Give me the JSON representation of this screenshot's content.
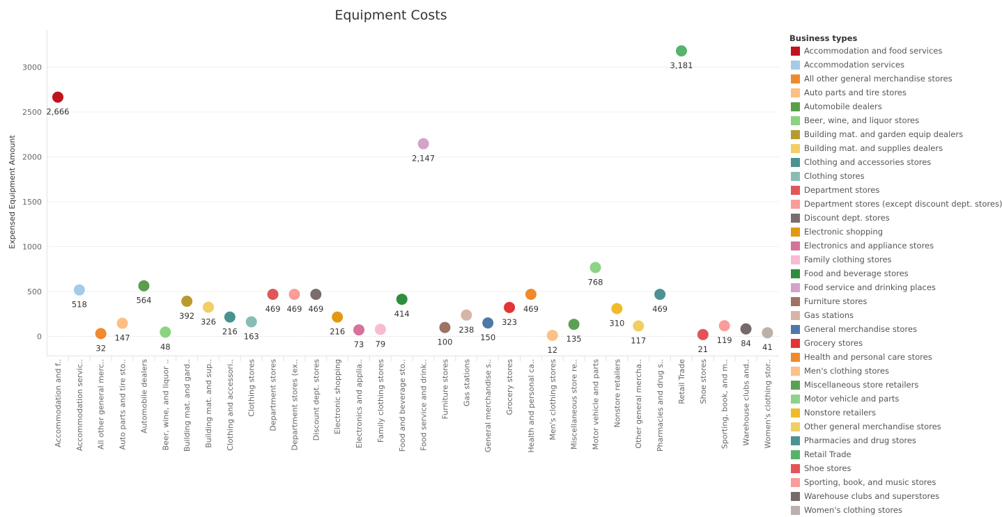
{
  "chart_data": {
    "type": "scatter",
    "title": "Equipment Costs",
    "ylabel": "Expensed Equipment Amount",
    "ylim": [
      -200,
      3400
    ],
    "yticks": [
      0,
      500,
      1000,
      1500,
      2000,
      2500,
      3000
    ],
    "legend_title": "Business types",
    "legend_position": "right",
    "grid": true,
    "points": [
      {
        "category": "Accommodation and food services",
        "tick": "Accommodation and f..",
        "value": 2666,
        "value_label": "2,666",
        "color": "#C0131E"
      },
      {
        "category": "Accommodation services",
        "tick": "Accommodation servic..",
        "value": 518,
        "value_label": "518",
        "color": "#A4CCE8"
      },
      {
        "category": "All other general merchandise stores",
        "tick": "All other general merc..",
        "value": 32,
        "value_label": "32",
        "color": "#EF8A2E"
      },
      {
        "category": "Auto parts and tire stores",
        "tick": "Auto parts and tire sto..",
        "value": 147,
        "value_label": "147",
        "color": "#FDBF82"
      },
      {
        "category": "Automobile dealers",
        "tick": "Automobile dealers",
        "value": 564,
        "value_label": "564",
        "color": "#5A9E4C"
      },
      {
        "category": "Beer, wine, and liquor stores",
        "tick": "Beer, wine, and liquor ..",
        "value": 48,
        "value_label": "48",
        "color": "#8BD37E"
      },
      {
        "category": "Building mat. and garden equip dealers",
        "tick": "Building mat. and gard..",
        "value": 392,
        "value_label": "392",
        "color": "#B89B2F"
      },
      {
        "category": "Building mat. and supplies dealers",
        "tick": "Building mat. and sup..",
        "value": 326,
        "value_label": "326",
        "color": "#F2CE67"
      },
      {
        "category": "Clothing and accessories stores",
        "tick": "Clothing and accessori..",
        "value": 216,
        "value_label": "216",
        "color": "#4A9292"
      },
      {
        "category": "Clothing stores",
        "tick": "Clothing stores",
        "value": 163,
        "value_label": "163",
        "color": "#88BDB5"
      },
      {
        "category": "Department stores",
        "tick": "Department stores",
        "value": 469,
        "value_label": "469",
        "color": "#E05759"
      },
      {
        "category": "Department stores (except discount dept. stores)",
        "tick": "Department stores (ex..",
        "value": 469,
        "value_label": "469",
        "color": "#FA9C99"
      },
      {
        "category": "Discount dept. stores",
        "tick": "Discount dept. stores",
        "value": 469,
        "value_label": "469",
        "color": "#7A6D6D"
      },
      {
        "category": "Electronic shopping",
        "tick": "Electronic shopping",
        "value": 216,
        "value_label": "216",
        "color": "#E39812"
      },
      {
        "category": "Electronics and appliance stores",
        "tick": "Electronics and applia..",
        "value": 73,
        "value_label": "73",
        "color": "#D5739A"
      },
      {
        "category": "Family clothing stores",
        "tick": "Family clothing stores",
        "value": 79,
        "value_label": "79",
        "color": "#F8BBD1"
      },
      {
        "category": "Food and beverage stores",
        "tick": "Food and beverage sto..",
        "value": 414,
        "value_label": "414",
        "color": "#2F8E3E"
      },
      {
        "category": "Food service and drinking places",
        "tick": "Food service and drink..",
        "value": 2147,
        "value_label": "2,147",
        "color": "#D3A3CA"
      },
      {
        "category": "Furniture stores",
        "tick": "Furniture stores",
        "value": 100,
        "value_label": "100",
        "color": "#9D7361"
      },
      {
        "category": "Gas stations",
        "tick": "Gas stations",
        "value": 238,
        "value_label": "238",
        "color": "#D7B5A6"
      },
      {
        "category": "General merchandise stores",
        "tick": "General merchandise s..",
        "value": 150,
        "value_label": "150",
        "color": "#4E79A7"
      },
      {
        "category": "Grocery stores",
        "tick": "Grocery stores",
        "value": 323,
        "value_label": "323",
        "color": "#E33436"
      },
      {
        "category": "Health and personal care stores",
        "tick": "Health and personal ca..",
        "value": 469,
        "value_label": "469",
        "color": "#F08A2B"
      },
      {
        "category": "Men's clothing stores",
        "tick": "Men's clothing stores",
        "value": 12,
        "value_label": "12",
        "color": "#FDC086"
      },
      {
        "category": "Miscellaneous store retailers",
        "tick": "Miscellaneous store re..",
        "value": 135,
        "value_label": "135",
        "color": "#5BA153"
      },
      {
        "category": "Motor vehicle and parts",
        "tick": "Motor vehicle and parts",
        "value": 768,
        "value_label": "768",
        "color": "#8DD387"
      },
      {
        "category": "Nonstore retailers",
        "tick": "Nonstore retailers",
        "value": 310,
        "value_label": "310",
        "color": "#F0BB28"
      },
      {
        "category": "Other general merchandise stores",
        "tick": "Other general mercha..",
        "value": 117,
        "value_label": "117",
        "color": "#F1CE63"
      },
      {
        "category": "Pharmacies and drug stores",
        "tick": "Pharmacies and drug s..",
        "value": 469,
        "value_label": "469",
        "color": "#4C9292"
      },
      {
        "category": "Retail Trade",
        "tick": "Retail Trade",
        "value": 3181,
        "value_label": "3,181",
        "color": "#55B36B"
      },
      {
        "category": "Shoe stores",
        "tick": "Shoe stores",
        "value": 21,
        "value_label": "21",
        "color": "#E3535A"
      },
      {
        "category": "Sporting, book, and  music stores",
        "tick": "Sporting, book, and  m..",
        "value": 119,
        "value_label": "119",
        "color": "#FA9C99"
      },
      {
        "category": "Warehouse clubs and superstores",
        "tick": "Warehouse clubs and..",
        "value": 84,
        "value_label": "84",
        "color": "#76696A"
      },
      {
        "category": "Women's clothing stores",
        "tick": "Women's clothing stor..",
        "value": 41,
        "value_label": "41",
        "color": "#BAB0AC"
      }
    ]
  }
}
